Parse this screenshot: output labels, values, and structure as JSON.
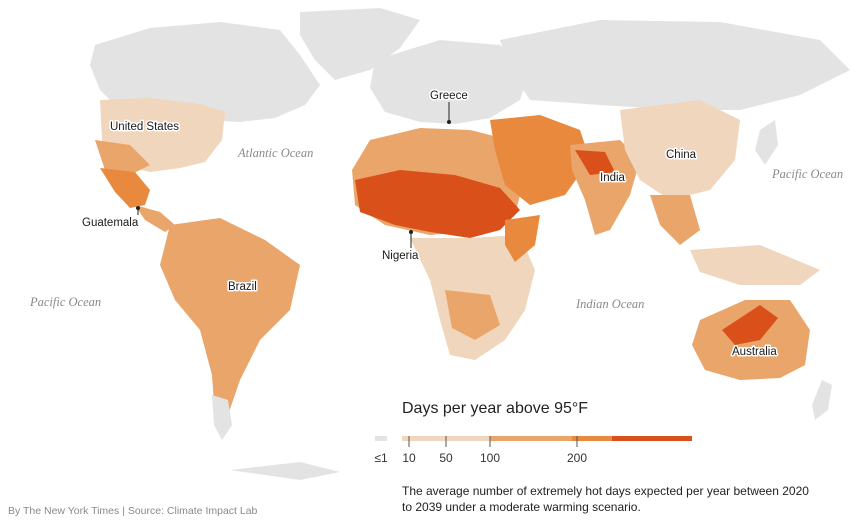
{
  "places": {
    "united_states": "United States",
    "guatemala": "Guatemala",
    "brazil": "Brazil",
    "greece": "Greece",
    "nigeria": "Nigeria",
    "india": "India",
    "china": "China",
    "australia": "Australia"
  },
  "oceans": {
    "atlantic": "Atlantic Ocean",
    "pacific_east": "Pacific Ocean",
    "pacific_west": "Pacific Ocean",
    "indian": "Indian Ocean"
  },
  "legend": {
    "title": "Days per year above 95°F",
    "ticks": [
      "≤1",
      "10",
      "50",
      "100",
      "200"
    ],
    "colors": {
      "none": "#e3e3e3",
      "low": "#efd6bd",
      "mid": "#e9a56a",
      "high": "#e8893e",
      "max": "#d9501a"
    }
  },
  "description": "The average number of extremely hot days expected per year between 2020 to 2039 under a moderate warming scenario.",
  "credit": "By The New York Times | Source: Climate Impact Lab"
}
